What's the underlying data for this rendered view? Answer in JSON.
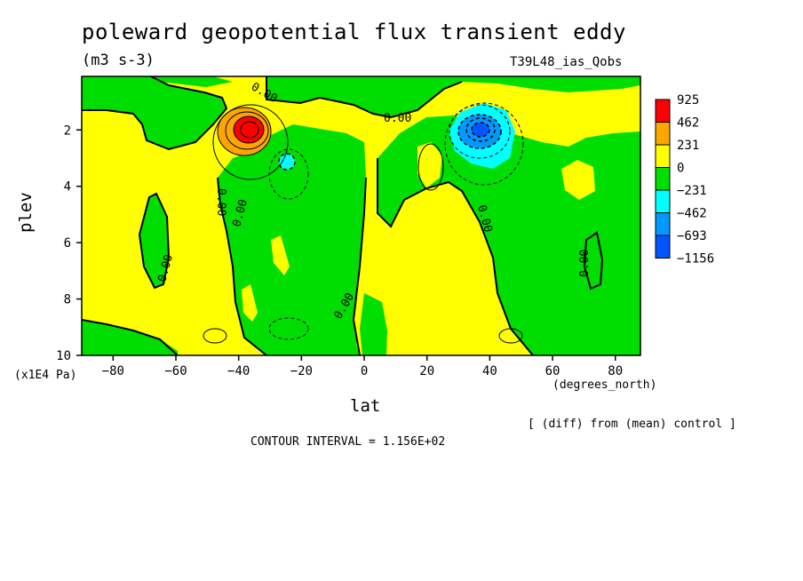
{
  "title": "poleward geopotential flux transient eddy",
  "units": "(m3 s-3)",
  "experiment": "T39L48_ias_Qobs",
  "diff_note": "[ (diff) from (mean) control ]",
  "contour_note": "CONTOUR INTERVAL = 1.156E+02",
  "scale_note": "(x1E4 Pa)",
  "colors": {
    "level_925": "#ff0000",
    "level_462": "#ffa500",
    "level_231": "#ffff00",
    "level_0": "#00dd00",
    "level_m231": "#00ffff",
    "level_m462": "#0099ff",
    "level_m693": "#0055ff",
    "background": "#ffff00"
  },
  "chart_data": {
    "type": "heatmap",
    "title": "poleward geopotential flux transient eddy",
    "xlabel": "lat",
    "xunit": "(degrees_north)",
    "ylabel": "plev",
    "xlim": [
      -90,
      88
    ],
    "ylim": [
      0.1,
      10
    ],
    "y_inverted": true,
    "xticks": [
      -80,
      -60,
      -40,
      -20,
      0,
      20,
      40,
      60,
      80
    ],
    "yticks": [
      2,
      4,
      6,
      8,
      10
    ],
    "contour_interval": 115.6,
    "contour_labels": [
      "0.00",
      "0.00",
      "0.00",
      "0.00",
      "0.00",
      "0.00",
      "0.00",
      "0.00"
    ],
    "legend": {
      "labels": [
        "925",
        "462",
        "231",
        "0",
        "-231",
        "-462",
        "-693",
        "-1156"
      ],
      "colors": [
        "#ff0000",
        "#ffa500",
        "#ffff00",
        "#00dd00",
        "#00ffff",
        "#0099ff",
        "#0055ff"
      ]
    },
    "features": [
      {
        "name": "positive-maximum",
        "lat": -37,
        "plev": 2,
        "value": 925
      },
      {
        "name": "negative-minimum",
        "lat": 38,
        "plev": 2,
        "value": -1156
      },
      {
        "name": "small-negative-cell",
        "lat": -24,
        "plev": 3.1,
        "value": -300
      }
    ]
  }
}
